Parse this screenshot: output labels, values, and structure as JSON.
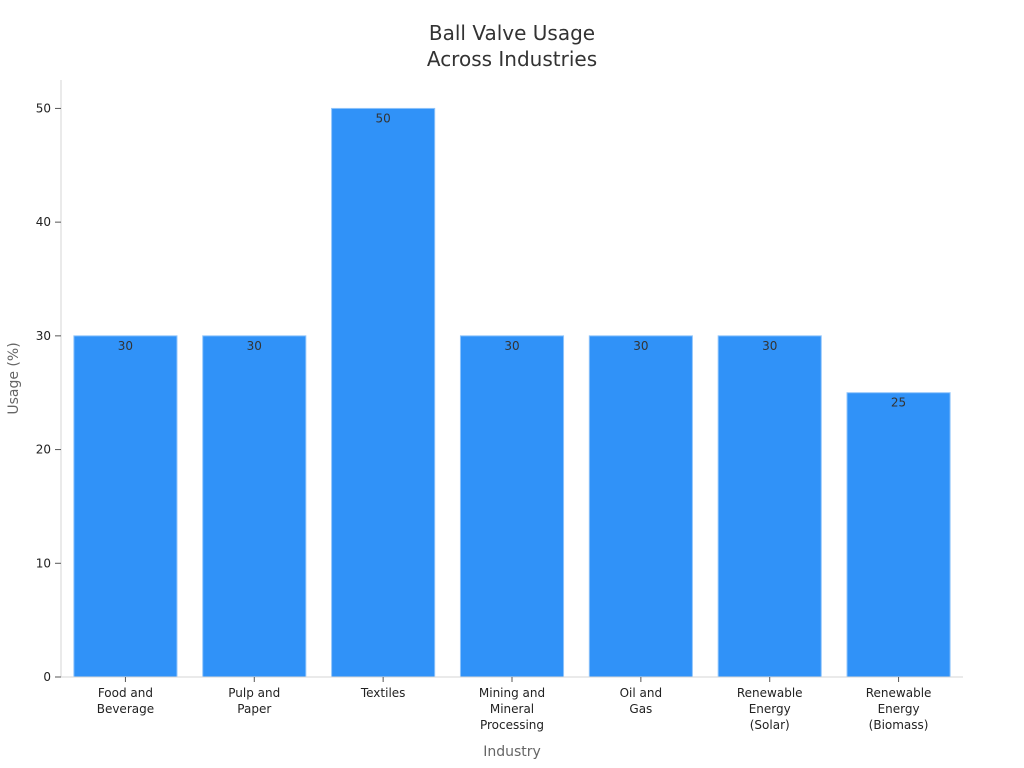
{
  "chart_data": {
    "type": "bar",
    "title_lines": [
      "Ball Valve Usage",
      "Across Industries"
    ],
    "xlabel": "Industry",
    "ylabel": "Usage (%)",
    "categories": [
      [
        "Food and",
        "Beverage"
      ],
      [
        "Pulp and",
        "Paper"
      ],
      [
        "Textiles"
      ],
      [
        "Mining and",
        "Mineral",
        "Processing"
      ],
      [
        "Oil and",
        "Gas"
      ],
      [
        "Renewable",
        "Energy",
        "(Solar)"
      ],
      [
        "Renewable",
        "Energy",
        "(Biomass)"
      ]
    ],
    "values": [
      30,
      30,
      50,
      30,
      30,
      30,
      25
    ],
    "ylim": [
      0,
      52.5
    ],
    "yticks": [
      0,
      10,
      20,
      30,
      40,
      50
    ],
    "grid": false,
    "legend": "none",
    "bar_color": "#3092f8"
  }
}
